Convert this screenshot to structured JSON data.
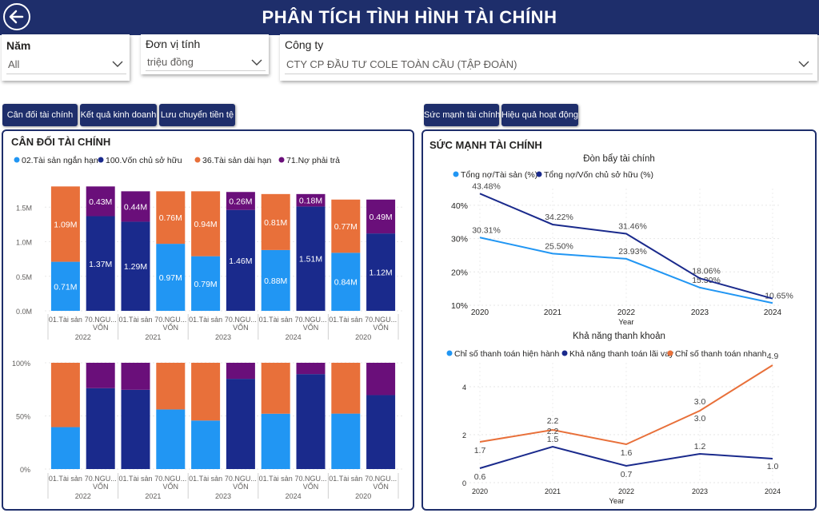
{
  "header": {
    "title": "PHÂN TÍCH TÌNH HÌNH TÀI CHÍNH"
  },
  "filters": {
    "year": {
      "label": "Năm",
      "value": "All"
    },
    "unit": {
      "label": "Đơn vị tính",
      "value": "triệu đồng"
    },
    "company": {
      "label": "Công ty",
      "value": "CTY CP ĐẦU TƯ COLE TOÀN CẦU (TẬP ĐOÀN)"
    }
  },
  "nav_left": [
    "Cân đối tài chính",
    "Kết quả kinh doanh",
    "Lưu chuyển tiền tệ"
  ],
  "nav_right": [
    "Sức mạnh tài chính",
    "Hiệu quả hoạt động"
  ],
  "left_panel": {
    "title": "CÂN ĐỐI TÀI CHÍNH"
  },
  "right_panel": {
    "title": "SỨC MẠNH TÀI CHÍNH"
  },
  "colors": {
    "nav": "#1e2e6b",
    "light_blue": "#2196f3",
    "dark_blue": "#1a2a8c",
    "orange": "#e8703a",
    "purple": "#6a0f7a"
  },
  "chart_data": [
    {
      "type": "bar",
      "stacked": true,
      "legend": [
        "02.Tài sản ngắn hạn",
        "100.Vốn chủ sở hữu",
        "36.Tài sản dài hạn",
        "71.Nợ phải trả"
      ],
      "legend_colors": [
        "#2196f3",
        "#1a2a8c",
        "#e8703a",
        "#6a0f7a"
      ],
      "y_ticks": [
        "0.0M",
        "0.5M",
        "1.0M",
        "1.5M"
      ],
      "ylim": [
        0,
        1.85
      ],
      "groups": [
        "2022",
        "2021",
        "2023",
        "2024",
        "2020"
      ],
      "category_labels": [
        "01.Tài sản",
        "70.NGU... VỐN"
      ],
      "bars": [
        {
          "group": "2022",
          "segments": [
            {
              "series": "02.Tài sản ngắn hạn",
              "value": 0.71,
              "label": "0.71M",
              "color": "#2196f3"
            },
            {
              "series": "36.Tài sản dài hạn",
              "value": 1.09,
              "label": "1.09M",
              "color": "#e8703a"
            }
          ]
        },
        {
          "group": "2022",
          "segments": [
            {
              "series": "100.Vốn chủ sở hữu",
              "value": 1.37,
              "label": "1.37M",
              "color": "#1a2a8c"
            },
            {
              "series": "71.Nợ phải trả",
              "value": 0.43,
              "label": "0.43M",
              "color": "#6a0f7a"
            }
          ]
        },
        {
          "group": "2021",
          "segments": [
            {
              "series": "100.Vốn chủ sở hữu",
              "value": 1.29,
              "label": "1.29M",
              "color": "#1a2a8c"
            },
            {
              "series": "71.Nợ phải trả",
              "value": 0.44,
              "label": "0.44M",
              "color": "#6a0f7a"
            }
          ]
        },
        {
          "group": "2021",
          "segments": [
            {
              "series": "02.Tài sản ngắn hạn",
              "value": 0.97,
              "label": "0.97M",
              "color": "#2196f3"
            },
            {
              "series": "36.Tài sản dài hạn",
              "value": 0.76,
              "label": "0.76M",
              "color": "#e8703a"
            }
          ]
        },
        {
          "group": "2023",
          "segments": [
            {
              "series": "02.Tài sản ngắn hạn",
              "value": 0.79,
              "label": "0.79M",
              "color": "#2196f3"
            },
            {
              "series": "36.Tài sản dài hạn",
              "value": 0.94,
              "label": "0.94M",
              "color": "#e8703a"
            }
          ]
        },
        {
          "group": "2023",
          "segments": [
            {
              "series": "100.Vốn chủ sở hữu",
              "value": 1.46,
              "label": "1.46M",
              "color": "#1a2a8c"
            },
            {
              "series": "71.Nợ phải trả",
              "value": 0.26,
              "label": "0.26M",
              "color": "#6a0f7a"
            }
          ]
        },
        {
          "group": "2024",
          "segments": [
            {
              "series": "02.Tài sản ngắn hạn",
              "value": 0.88,
              "label": "0.88M",
              "color": "#2196f3"
            },
            {
              "series": "36.Tài sản dài hạn",
              "value": 0.81,
              "label": "0.81M",
              "color": "#e8703a"
            }
          ]
        },
        {
          "group": "2024",
          "segments": [
            {
              "series": "100.Vốn chủ sở hữu",
              "value": 1.51,
              "label": "1.51M",
              "color": "#1a2a8c"
            },
            {
              "series": "71.Nợ phải trả",
              "value": 0.18,
              "label": "0.18M",
              "color": "#6a0f7a"
            }
          ]
        },
        {
          "group": "2020",
          "segments": [
            {
              "series": "02.Tài sản ngắn hạn",
              "value": 0.84,
              "label": "0.84M",
              "color": "#2196f3"
            },
            {
              "series": "36.Tài sản dài hạn",
              "value": 0.77,
              "label": "0.77M",
              "color": "#e8703a"
            }
          ]
        },
        {
          "group": "2020",
          "segments": [
            {
              "series": "100.Vốn chủ sở hữu",
              "value": 1.12,
              "label": "1.12M",
              "color": "#1a2a8c"
            },
            {
              "series": "71.Nợ phải trả",
              "value": 0.49,
              "label": "0.49M",
              "color": "#6a0f7a"
            }
          ]
        }
      ]
    },
    {
      "type": "bar",
      "stacked_percent": true,
      "y_ticks": [
        "0%",
        "50%",
        "100%"
      ],
      "groups": [
        "2022",
        "2021",
        "2023",
        "2024",
        "2020"
      ],
      "category_labels": [
        "01.Tài sản",
        "70.NGU... VỐN"
      ]
    },
    {
      "type": "line",
      "title": "Đòn bẩy tài chính",
      "x": [
        "2020",
        "2021",
        "2022",
        "2023",
        "2024"
      ],
      "xlabel": "Year",
      "y_ticks": [
        "10%",
        "20%",
        "30%",
        "40%"
      ],
      "ylim": [
        10,
        45
      ],
      "series": [
        {
          "name": "Tổng nợ/Tài sản (%)",
          "color": "#2196f3",
          "values": [
            30.31,
            25.5,
            23.93,
            15.3,
            10.65
          ],
          "labels": [
            "30.31%",
            "25.50%",
            "23.93%",
            "15.30%",
            "10.65%"
          ]
        },
        {
          "name": "Tổng nợ/Vốn chủ sở hữu (%)",
          "color": "#1a2a8c",
          "values": [
            43.48,
            34.22,
            31.46,
            18.06,
            12.0
          ],
          "labels": [
            "43.48%",
            "34.22%",
            "31.46%",
            "18.06%",
            ""
          ]
        }
      ]
    },
    {
      "type": "line",
      "title": "Khả năng thanh khoản",
      "x": [
        "2020",
        "2021",
        "2022",
        "2023",
        "2024"
      ],
      "xlabel": "Year",
      "y_ticks": [
        "0",
        "2",
        "4"
      ],
      "ylim": [
        0,
        5
      ],
      "series": [
        {
          "name": "Chỉ số thanh toán hiện hành",
          "color": "#e8703a",
          "values": [
            1.7,
            2.2,
            1.6,
            3.0,
            4.9
          ],
          "labels": [
            "1.7",
            "2.2",
            "1.6",
            "3.0",
            "4.9"
          ]
        },
        {
          "name": "Khả năng thanh toán lãi vay",
          "color": "#1a2a8c",
          "values": [
            0.6,
            1.5,
            0.7,
            1.2,
            1.0
          ],
          "labels": [
            "0.6",
            "1.5",
            "0.7",
            "1.2",
            "1.0"
          ]
        },
        {
          "name": "Chỉ số thanh toán nhanh",
          "color": "#e8703a",
          "values": [
            1.7,
            2.2,
            1.6,
            3.0,
            4.9
          ],
          "labels": [
            "",
            "2.2",
            "",
            "3.0",
            ""
          ]
        }
      ]
    }
  ]
}
